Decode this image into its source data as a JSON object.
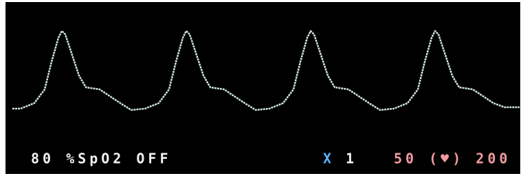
{
  "status_bar": {
    "spo2": "80 %SpO2 OFF",
    "gain": {
      "symbol": "X",
      "value": "1"
    },
    "pulse_range": "50 (♥) 200"
  }
}
